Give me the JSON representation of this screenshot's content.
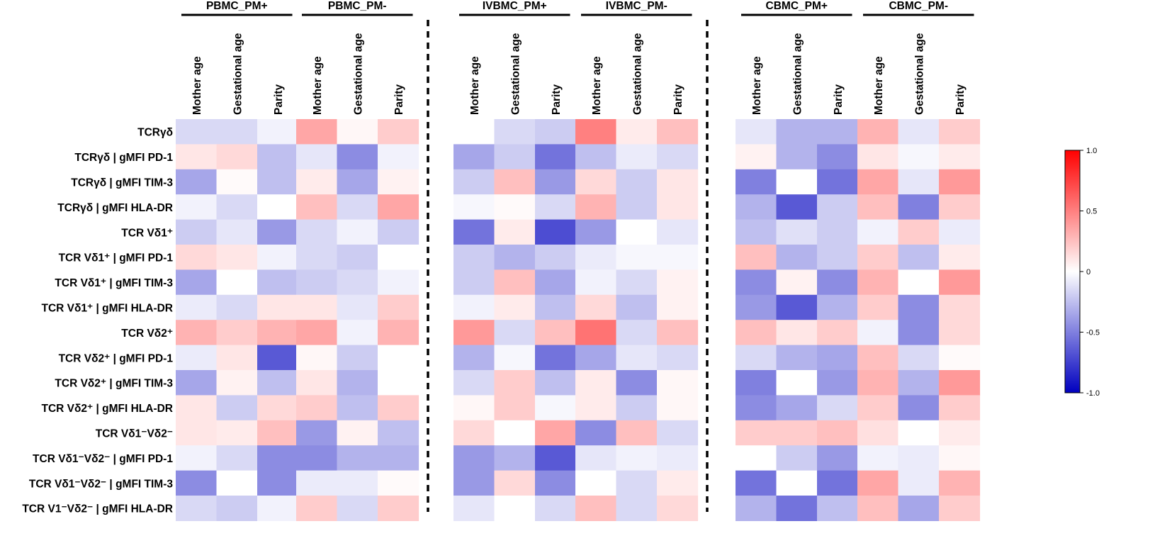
{
  "chart_data": {
    "type": "heatmap",
    "row_labels": [
      "TCRγδ",
      "TCRγδ | gMFI PD-1",
      "TCRγδ | gMFI TIM-3",
      "TCRγδ | gMFI HLA-DR",
      "TCR Vδ1⁺",
      "TCR Vδ1⁺ | gMFI PD-1",
      "TCR Vδ1⁺ | gMFI TIM-3",
      "TCR Vδ1⁺ | gMFI HLA-DR",
      "TCR Vδ2⁺",
      "TCR Vδ2⁺ | gMFI PD-1",
      "TCR Vδ2⁺ | gMFI TIM-3",
      "TCR Vδ2⁺ | gMFI HLA-DR",
      "TCR Vδ1⁻Vδ2⁻",
      "TCR Vδ1⁻Vδ2⁻ | gMFI PD-1",
      "TCR Vδ1⁻Vδ2⁻ | gMFI TIM-3",
      "TCR V1⁻Vδ2⁻ | gMFI HLA-DR"
    ],
    "column_labels": [
      "Mother age",
      "Gestational age",
      "Parity"
    ],
    "panels": [
      {
        "name": "PBMC_PM+",
        "values": [
          [
            -0.15,
            -0.15,
            -0.05
          ],
          [
            0.1,
            0.15,
            -0.25
          ],
          [
            -0.35,
            0.02,
            -0.25
          ],
          [
            -0.05,
            -0.15,
            0.0
          ],
          [
            -0.2,
            -0.1,
            -0.4
          ],
          [
            0.15,
            0.1,
            -0.05
          ],
          [
            -0.35,
            0.0,
            -0.25
          ],
          [
            -0.08,
            -0.15,
            0.1
          ],
          [
            0.3,
            0.2,
            0.3
          ],
          [
            -0.08,
            0.1,
            -0.65
          ],
          [
            -0.35,
            0.05,
            -0.25
          ],
          [
            0.1,
            -0.2,
            0.15
          ],
          [
            0.1,
            0.08,
            0.25
          ],
          [
            -0.05,
            -0.15,
            -0.45
          ],
          [
            -0.45,
            0.0,
            -0.45
          ],
          [
            -0.15,
            -0.2,
            -0.05
          ]
        ]
      },
      {
        "name": "PBMC_PM-",
        "values": [
          [
            0.35,
            0.03,
            0.2
          ],
          [
            -0.1,
            -0.45,
            -0.05
          ],
          [
            0.08,
            -0.35,
            0.05
          ],
          [
            0.25,
            -0.15,
            0.35
          ],
          [
            -0.15,
            -0.05,
            -0.2
          ],
          [
            -0.15,
            -0.2,
            0.0
          ],
          [
            -0.2,
            -0.15,
            -0.05
          ],
          [
            0.1,
            -0.1,
            0.2
          ],
          [
            0.35,
            -0.05,
            0.3
          ],
          [
            0.03,
            -0.2,
            0.0
          ],
          [
            0.1,
            -0.3,
            0.0
          ],
          [
            0.2,
            -0.25,
            0.2
          ],
          [
            -0.4,
            0.05,
            -0.25
          ],
          [
            -0.45,
            -0.3,
            -0.3
          ],
          [
            -0.08,
            -0.08,
            0.02
          ],
          [
            0.2,
            -0.15,
            0.2
          ]
        ]
      },
      {
        "name": "IVBMC_PM+",
        "values": [
          [
            0.0,
            -0.15,
            -0.2
          ],
          [
            -0.35,
            -0.2,
            -0.55
          ],
          [
            -0.2,
            0.25,
            -0.4
          ],
          [
            -0.03,
            0.02,
            -0.15
          ],
          [
            -0.55,
            0.08,
            -0.7
          ],
          [
            -0.2,
            -0.3,
            -0.2
          ],
          [
            -0.2,
            0.25,
            -0.35
          ],
          [
            -0.05,
            0.08,
            -0.25
          ],
          [
            0.4,
            -0.15,
            0.25
          ],
          [
            -0.3,
            -0.03,
            -0.55
          ],
          [
            -0.15,
            0.2,
            -0.25
          ],
          [
            0.03,
            0.2,
            -0.03
          ],
          [
            0.15,
            0.0,
            0.35
          ],
          [
            -0.4,
            -0.3,
            -0.65
          ],
          [
            -0.4,
            0.15,
            -0.45
          ],
          [
            -0.1,
            0.0,
            -0.15
          ]
        ]
      },
      {
        "name": "IVBMC_PM-",
        "values": [
          [
            0.5,
            0.08,
            0.25
          ],
          [
            -0.25,
            -0.08,
            -0.15
          ],
          [
            0.15,
            -0.2,
            0.1
          ],
          [
            0.3,
            -0.2,
            0.1
          ],
          [
            -0.4,
            0.0,
            -0.1
          ],
          [
            -0.08,
            -0.03,
            -0.03
          ],
          [
            -0.05,
            -0.15,
            0.05
          ],
          [
            0.15,
            -0.25,
            0.05
          ],
          [
            0.55,
            -0.15,
            0.25
          ],
          [
            -0.35,
            -0.1,
            -0.15
          ],
          [
            0.08,
            -0.45,
            0.03
          ],
          [
            0.08,
            -0.2,
            0.03
          ],
          [
            -0.45,
            0.25,
            -0.15
          ],
          [
            -0.1,
            -0.05,
            -0.08
          ],
          [
            0.0,
            -0.15,
            0.08
          ],
          [
            0.25,
            -0.15,
            0.15
          ]
        ]
      },
      {
        "name": "CBMC_PM+",
        "values": [
          [
            -0.1,
            -0.3,
            -0.3
          ],
          [
            0.05,
            -0.3,
            -0.45
          ],
          [
            -0.5,
            0.0,
            -0.55
          ],
          [
            -0.3,
            -0.65,
            -0.2
          ],
          [
            -0.25,
            -0.12,
            -0.2
          ],
          [
            0.25,
            -0.3,
            -0.2
          ],
          [
            -0.45,
            0.05,
            -0.45
          ],
          [
            -0.4,
            -0.65,
            -0.3
          ],
          [
            0.25,
            0.1,
            0.2
          ],
          [
            -0.15,
            -0.3,
            -0.35
          ],
          [
            -0.5,
            0.0,
            -0.4
          ],
          [
            -0.45,
            -0.35,
            -0.15
          ],
          [
            0.2,
            0.2,
            0.25
          ],
          [
            0.0,
            -0.2,
            -0.4
          ],
          [
            -0.55,
            0.0,
            -0.55
          ],
          [
            -0.3,
            -0.55,
            -0.25
          ]
        ]
      },
      {
        "name": "CBMC_PM-",
        "values": [
          [
            0.3,
            -0.1,
            0.2
          ],
          [
            0.1,
            -0.03,
            0.08
          ],
          [
            0.35,
            -0.1,
            0.4
          ],
          [
            0.25,
            -0.5,
            0.2
          ],
          [
            -0.05,
            0.2,
            -0.08
          ],
          [
            0.2,
            -0.25,
            0.08
          ],
          [
            0.3,
            0.0,
            0.4
          ],
          [
            0.2,
            -0.45,
            0.15
          ],
          [
            -0.05,
            -0.45,
            0.15
          ],
          [
            0.25,
            -0.15,
            0.02
          ],
          [
            0.3,
            -0.3,
            0.4
          ],
          [
            0.2,
            -0.45,
            0.2
          ],
          [
            0.12,
            0.0,
            0.08
          ],
          [
            -0.05,
            -0.08,
            0.03
          ],
          [
            0.35,
            -0.08,
            0.3
          ],
          [
            0.25,
            -0.35,
            0.2
          ]
        ]
      }
    ],
    "colorbar": {
      "range": [
        -1.0,
        1.0
      ],
      "ticks": [
        {
          "value": 1.0,
          "label": "1.0"
        },
        {
          "value": 0.5,
          "label": "0.5"
        },
        {
          "value": 0.0,
          "label": "0"
        },
        {
          "value": -0.5,
          "label": "-0.5"
        },
        {
          "value": -1.0,
          "label": "-1.0"
        }
      ],
      "colors": {
        "low": "#0000bf",
        "mid": "#ffffff",
        "high": "#ff0000"
      }
    }
  }
}
